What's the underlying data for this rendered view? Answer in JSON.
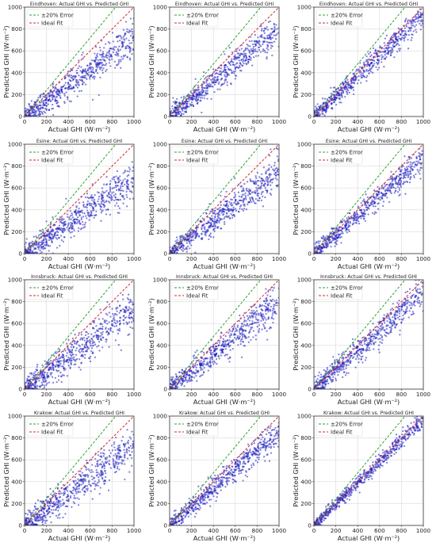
{
  "figure": {
    "xlabel": "Actual GHI (W·m⁻²)",
    "ylabel": "Predicted GHI (W·m⁻²)",
    "legend": [
      "±20% Error",
      "Ideal Fit"
    ],
    "colors": {
      "points": "#1f1fbf",
      "ideal": "#d62728",
      "error": "#2ca02c",
      "grid": "#d9d9d9"
    }
  },
  "chart_data": [
    {
      "type": "scatter",
      "title": "Eindhoven: Actual GHI vs. Predicted GHI",
      "xlabel": "Actual GHI (W·m⁻²)",
      "ylabel": "Predicted GHI (W·m⁻²)",
      "xlim": [
        0,
        1000
      ],
      "ylim": [
        0,
        1000
      ],
      "xticks": [
        0,
        200,
        400,
        600,
        800,
        1000
      ],
      "yticks": [
        0,
        200,
        400,
        600,
        800,
        1000
      ],
      "grid": true,
      "legend": "top-left",
      "series": [
        {
          "name": "±20% Error",
          "type": "line",
          "x": [
            0,
            833
          ],
          "y": [
            0,
            1000
          ]
        },
        {
          "name": "Ideal Fit",
          "type": "line",
          "x": [
            0,
            1000
          ],
          "y": [
            0,
            1000
          ]
        },
        {
          "type": "points",
          "slope": 0.72,
          "spread": 85,
          "n": 620
        }
      ]
    },
    {
      "type": "scatter",
      "title": "Eindhoven: Actual GHI vs. Predicted GHI",
      "xlabel": "Actual GHI (W·m⁻²)",
      "ylabel": "Predicted GHI (W·m⁻²)",
      "xlim": [
        0,
        1000
      ],
      "ylim": [
        0,
        1000
      ],
      "xticks": [
        0,
        200,
        400,
        600,
        800,
        1000
      ],
      "yticks": [
        0,
        200,
        400,
        600,
        800,
        1000
      ],
      "grid": true,
      "legend": "top-left",
      "series": [
        {
          "name": "±20% Error",
          "type": "line",
          "x": [
            0,
            833
          ],
          "y": [
            0,
            1000
          ]
        },
        {
          "name": "Ideal Fit",
          "type": "line",
          "x": [
            0,
            1000
          ],
          "y": [
            0,
            1000
          ]
        },
        {
          "type": "points",
          "slope": 0.8,
          "spread": 75,
          "n": 620
        }
      ]
    },
    {
      "type": "scatter",
      "title": "Eindhoven: Actual GHI vs. Predicted GHI",
      "xlabel": "Actual GHI (W·m⁻²)",
      "ylabel": "Predicted GHI (W·m⁻²)",
      "xlim": [
        0,
        1000
      ],
      "ylim": [
        0,
        1000
      ],
      "xticks": [
        0,
        200,
        400,
        600,
        800,
        1000
      ],
      "yticks": [
        0,
        200,
        400,
        600,
        800,
        1000
      ],
      "grid": true,
      "legend": "top-left",
      "series": [
        {
          "name": "±20% Error",
          "type": "line",
          "x": [
            0,
            833
          ],
          "y": [
            0,
            1000
          ]
        },
        {
          "name": "Ideal Fit",
          "type": "line",
          "x": [
            0,
            1000
          ],
          "y": [
            0,
            1000
          ]
        },
        {
          "type": "points",
          "slope": 0.93,
          "spread": 60,
          "n": 620
        }
      ]
    },
    {
      "type": "scatter",
      "title": "Esine: Actual GHI vs. Predicted GHI",
      "xlabel": "Actual GHI (W·m⁻²)",
      "ylabel": "Predicted GHI (W·m⁻²)",
      "xlim": [
        0,
        1000
      ],
      "ylim": [
        0,
        1000
      ],
      "xticks": [
        0,
        200,
        400,
        600,
        800,
        1000
      ],
      "yticks": [
        0,
        200,
        400,
        600,
        800,
        1000
      ],
      "grid": true,
      "legend": "top-left",
      "series": [
        {
          "name": "±20% Error",
          "type": "line",
          "x": [
            0,
            833
          ],
          "y": [
            0,
            1000
          ]
        },
        {
          "name": "Ideal Fit",
          "type": "line",
          "x": [
            0,
            1000
          ],
          "y": [
            0,
            1000
          ]
        },
        {
          "type": "points",
          "slope": 0.68,
          "spread": 90,
          "n": 620
        }
      ]
    },
    {
      "type": "scatter",
      "title": "Esine: Actual GHI vs. Predicted GHI",
      "xlabel": "Actual GHI (W·m⁻²)",
      "ylabel": "Predicted GHI (W·m⁻²)",
      "xlim": [
        0,
        1000
      ],
      "ylim": [
        0,
        1000
      ],
      "xticks": [
        0,
        200,
        400,
        600,
        800,
        1000
      ],
      "yticks": [
        0,
        200,
        400,
        600,
        800,
        1000
      ],
      "grid": true,
      "legend": "top-left",
      "series": [
        {
          "name": "±20% Error",
          "type": "line",
          "x": [
            0,
            833
          ],
          "y": [
            0,
            1000
          ]
        },
        {
          "name": "Ideal Fit",
          "type": "line",
          "x": [
            0,
            1000
          ],
          "y": [
            0,
            1000
          ]
        },
        {
          "type": "points",
          "slope": 0.76,
          "spread": 80,
          "n": 620
        }
      ]
    },
    {
      "type": "scatter",
      "title": "Esine: Actual GHI vs. Predicted GHI",
      "xlabel": "Actual GHI (W·m⁻²)",
      "ylabel": "Predicted GHI (W·m⁻²)",
      "xlim": [
        0,
        1000
      ],
      "ylim": [
        0,
        1000
      ],
      "xticks": [
        0,
        200,
        400,
        600,
        800,
        1000
      ],
      "yticks": [
        0,
        200,
        400,
        600,
        800,
        1000
      ],
      "grid": true,
      "legend": "top-left",
      "series": [
        {
          "name": "±20% Error",
          "type": "line",
          "x": [
            0,
            833
          ],
          "y": [
            0,
            1000
          ]
        },
        {
          "name": "Ideal Fit",
          "type": "line",
          "x": [
            0,
            1000
          ],
          "y": [
            0,
            1000
          ]
        },
        {
          "type": "points",
          "slope": 0.87,
          "spread": 65,
          "n": 620
        }
      ]
    },
    {
      "type": "scatter",
      "title": "Innsbruck: Actual GHI vs. Predicted GHI",
      "xlabel": "Actual GHI (W·m⁻²)",
      "ylabel": "Predicted GHI (W·m⁻²)",
      "xlim": [
        0,
        1000
      ],
      "ylim": [
        0,
        1000
      ],
      "xticks": [
        0,
        200,
        400,
        600,
        800,
        1000
      ],
      "yticks": [
        0,
        200,
        400,
        600,
        800,
        1000
      ],
      "grid": true,
      "legend": "top-left",
      "series": [
        {
          "name": "±20% Error",
          "type": "line",
          "x": [
            0,
            833
          ],
          "y": [
            0,
            1000
          ]
        },
        {
          "name": "Ideal Fit",
          "type": "line",
          "x": [
            0,
            1000
          ],
          "y": [
            0,
            1000
          ]
        },
        {
          "type": "points",
          "slope": 0.72,
          "spread": 95,
          "n": 620
        }
      ]
    },
    {
      "type": "scatter",
      "title": "Innsbruck: Actual GHI vs. Predicted GHI",
      "xlabel": "Actual GHI (W·m⁻²)",
      "ylabel": "Predicted GHI (W·m⁻²)",
      "xlim": [
        0,
        1000
      ],
      "ylim": [
        0,
        1000
      ],
      "xticks": [
        0,
        200,
        400,
        600,
        800,
        1000
      ],
      "yticks": [
        0,
        200,
        400,
        600,
        800,
        1000
      ],
      "grid": true,
      "legend": "top-left",
      "series": [
        {
          "name": "±20% Error",
          "type": "line",
          "x": [
            0,
            833
          ],
          "y": [
            0,
            1000
          ]
        },
        {
          "name": "Ideal Fit",
          "type": "line",
          "x": [
            0,
            1000
          ],
          "y": [
            0,
            1000
          ]
        },
        {
          "type": "points",
          "slope": 0.8,
          "spread": 85,
          "n": 620
        }
      ]
    },
    {
      "type": "scatter",
      "title": "Innsbruck: Actual GHI vs. Predicted GHI",
      "xlabel": "Actual GHI (W·m⁻²)",
      "ylabel": "Predicted GHI (W·m⁻²)",
      "xlim": [
        0,
        1000
      ],
      "ylim": [
        0,
        1000
      ],
      "xticks": [
        0,
        200,
        400,
        600,
        800,
        1000
      ],
      "yticks": [
        0,
        200,
        400,
        600,
        800,
        1000
      ],
      "grid": true,
      "legend": "top-left",
      "series": [
        {
          "name": "±20% Error",
          "type": "line",
          "x": [
            0,
            833
          ],
          "y": [
            0,
            1000
          ]
        },
        {
          "name": "Ideal Fit",
          "type": "line",
          "x": [
            0,
            1000
          ],
          "y": [
            0,
            1000
          ]
        },
        {
          "type": "points",
          "slope": 0.88,
          "spread": 75,
          "n": 620
        }
      ]
    },
    {
      "type": "scatter",
      "title": "Krakow: Actual GHI vs. Predicted GHI",
      "xlabel": "Actual GHI (W·m⁻²)",
      "ylabel": "Predicted GHI (W·m⁻²)",
      "xlim": [
        0,
        1000
      ],
      "ylim": [
        0,
        1000
      ],
      "xticks": [
        0,
        200,
        400,
        600,
        800,
        1000
      ],
      "yticks": [
        0,
        200,
        400,
        600,
        800,
        1000
      ],
      "grid": true,
      "legend": "top-left",
      "series": [
        {
          "name": "±20% Error",
          "type": "line",
          "x": [
            0,
            833
          ],
          "y": [
            0,
            1000
          ]
        },
        {
          "name": "Ideal Fit",
          "type": "line",
          "x": [
            0,
            1000
          ],
          "y": [
            0,
            1000
          ]
        },
        {
          "type": "points",
          "slope": 0.74,
          "spread": 90,
          "n": 620
        }
      ]
    },
    {
      "type": "scatter",
      "title": "Krakow: Actual GHI vs. Predicted GHI",
      "xlabel": "Actual GHI (W·m⁻²)",
      "ylabel": "Predicted GHI (W·m⁻²)",
      "xlim": [
        0,
        1000
      ],
      "ylim": [
        0,
        1000
      ],
      "xticks": [
        0,
        200,
        400,
        600,
        800,
        1000
      ],
      "yticks": [
        0,
        200,
        400,
        600,
        800,
        1000
      ],
      "grid": true,
      "legend": "top-left",
      "series": [
        {
          "name": "±20% Error",
          "type": "line",
          "x": [
            0,
            833
          ],
          "y": [
            0,
            1000
          ]
        },
        {
          "name": "Ideal Fit",
          "type": "line",
          "x": [
            0,
            1000
          ],
          "y": [
            0,
            1000
          ]
        },
        {
          "type": "points",
          "slope": 0.86,
          "spread": 70,
          "n": 620
        }
      ]
    },
    {
      "type": "scatter",
      "title": "Krakow: Actual GHI vs. Predicted GHI",
      "xlabel": "Actual GHI (W·m⁻²)",
      "ylabel": "Predicted GHI (W·m⁻²)",
      "xlim": [
        0,
        1000
      ],
      "ylim": [
        0,
        1000
      ],
      "xticks": [
        0,
        200,
        400,
        600,
        800,
        1000
      ],
      "yticks": [
        0,
        200,
        400,
        600,
        800,
        1000
      ],
      "grid": true,
      "legend": "top-left",
      "series": [
        {
          "name": "±20% Error",
          "type": "line",
          "x": [
            0,
            833
          ],
          "y": [
            0,
            1000
          ]
        },
        {
          "name": "Ideal Fit",
          "type": "line",
          "x": [
            0,
            1000
          ],
          "y": [
            0,
            1000
          ]
        },
        {
          "type": "points",
          "slope": 0.97,
          "spread": 40,
          "n": 620
        }
      ]
    }
  ]
}
